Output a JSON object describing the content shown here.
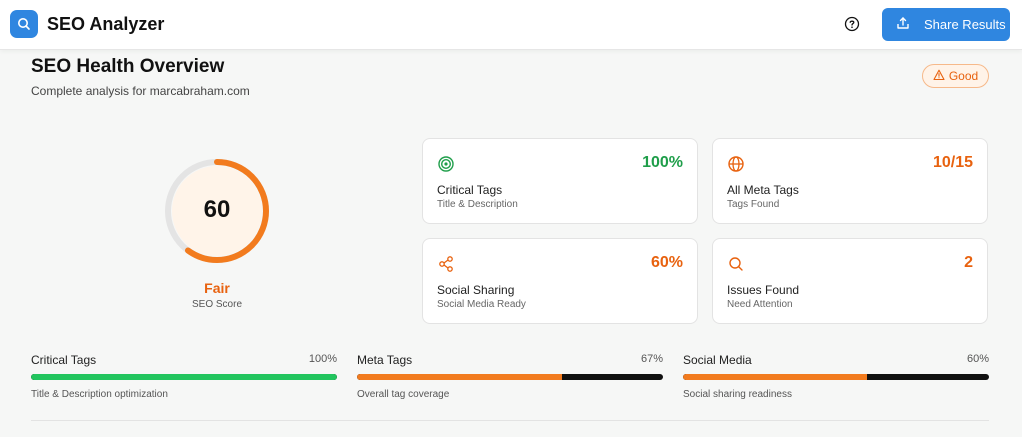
{
  "header": {
    "app_title": "SEO Analyzer",
    "share_label": "Share Results"
  },
  "overview": {
    "title": "SEO Health Overview",
    "subtitle": "Complete analysis for marcabraham.com",
    "status_label": "Good"
  },
  "score": {
    "value": "60",
    "fraction": 0.6,
    "grade": "Fair",
    "caption": "SEO Score"
  },
  "cards": [
    {
      "value": "100%",
      "title": "Critical Tags",
      "sub": "Title & Description",
      "icon": "target-icon"
    },
    {
      "value": "10/15",
      "title": "All Meta Tags",
      "sub": "Tags Found",
      "icon": "globe-icon"
    },
    {
      "value": "60%",
      "title": "Social Sharing",
      "sub": "Social Media Ready",
      "icon": "share-nodes-icon"
    },
    {
      "value": "2",
      "title": "Issues Found",
      "sub": "Need Attention",
      "icon": "search-icon"
    }
  ],
  "progress": [
    {
      "label": "Critical Tags",
      "pct": "100%",
      "fraction": 1.0,
      "desc": "Title & Description optimization",
      "color": "#22c55e"
    },
    {
      "label": "Meta Tags",
      "pct": "67%",
      "fraction": 0.67,
      "desc": "Overall tag coverage",
      "color": "#f27b1e"
    },
    {
      "label": "Social Media",
      "pct": "60%",
      "fraction": 0.6,
      "desc": "Social sharing readiness",
      "color": "#f27b1e"
    }
  ],
  "colors": {
    "primary": "#2f86e0",
    "accent_orange": "#e8620f",
    "success_green": "#1f9e4a"
  }
}
